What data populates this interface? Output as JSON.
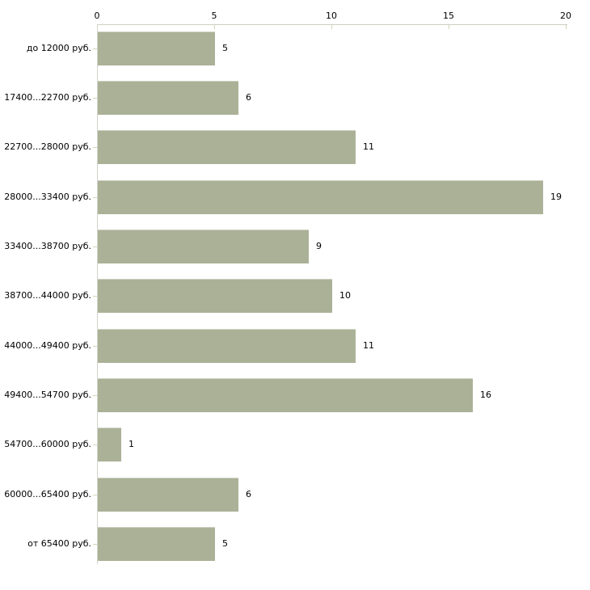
{
  "chart_data": {
    "type": "bar",
    "orientation": "horizontal",
    "title": "",
    "xlabel": "",
    "ylabel": "",
    "categories": [
      "до 12000 руб.",
      "17400...22700 руб.",
      "22700...28000 руб.",
      "28000...33400 руб.",
      "33400...38700 руб.",
      "38700...44000 руб.",
      "44000...49400 руб.",
      "49400...54700 руб.",
      "54700...60000 руб.",
      "60000...65400 руб.",
      "от 65400 руб."
    ],
    "values": [
      5,
      6,
      11,
      19,
      9,
      10,
      11,
      16,
      1,
      6,
      5
    ],
    "x_ticks": [
      0,
      5,
      10,
      15,
      20
    ],
    "xlim": [
      0,
      20
    ],
    "grid": false,
    "legend": "none",
    "axis_position": "top",
    "value_labels_position": "right-of-bar",
    "colors": {
      "bar_fill": "#abb197",
      "x_axis_line": "#ccd0bf",
      "y_axis_line": "#d3d3cd",
      "tick_mark": "#d2d5ba",
      "text": "#000000",
      "background": "#ffffff"
    }
  }
}
